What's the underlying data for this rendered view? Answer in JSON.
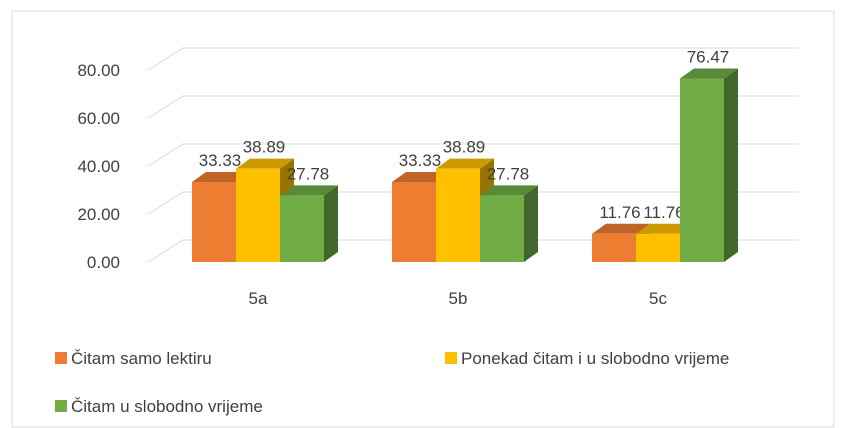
{
  "chart_data": {
    "type": "bar3d",
    "categories": [
      "5a",
      "5b",
      "5c"
    ],
    "series": [
      {
        "name": "Čitam samo lektiru",
        "color": "#ED7D31",
        "values": [
          33.33,
          33.33,
          11.76
        ]
      },
      {
        "name": "Ponekad čitam i u slobodno vrijeme",
        "color": "#FFC000",
        "values": [
          38.89,
          38.89,
          11.76
        ]
      },
      {
        "name": "Čitam u slobodno vrijeme",
        "color": "#70AD47",
        "values": [
          27.78,
          27.78,
          76.47
        ]
      }
    ],
    "ylim": [
      0,
      80
    ],
    "yticks": [
      {
        "value": 0,
        "label": "0.00"
      },
      {
        "value": 20,
        "label": "20.00"
      },
      {
        "value": 40,
        "label": "40.00"
      },
      {
        "value": 60,
        "label": "60.00"
      },
      {
        "value": 80,
        "label": "80.00"
      }
    ],
    "grid": true
  }
}
